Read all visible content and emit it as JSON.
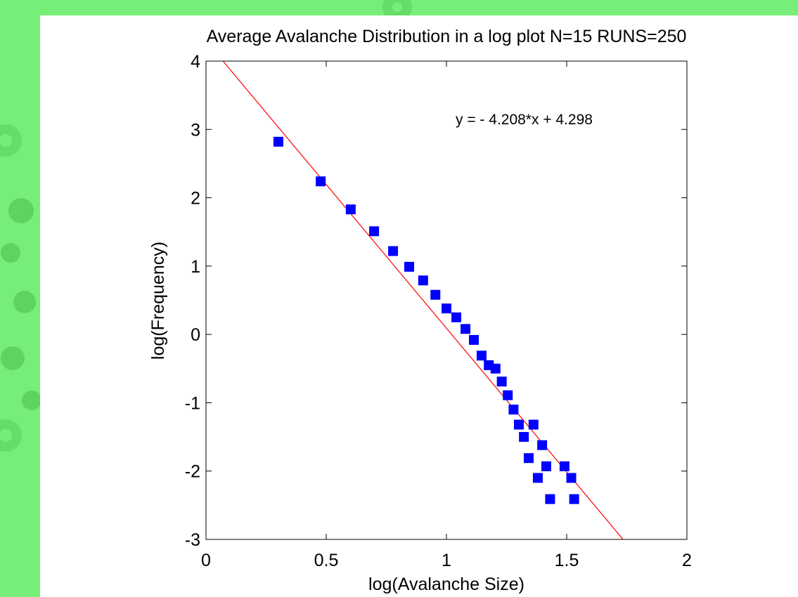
{
  "chart_data": {
    "type": "scatter",
    "title": "Average Avalanche Distribution in a log plot N=15 RUNS=250",
    "x_label": "log(Avalanche Size)",
    "y_label": "log(Frequency)",
    "xlim": [
      0,
      2
    ],
    "ylim": [
      -3,
      4
    ],
    "xticks": [
      0,
      0.5,
      1,
      1.5,
      2
    ],
    "yticks": [
      -3,
      -2,
      -1,
      0,
      1,
      2,
      3,
      4
    ],
    "grid": false,
    "series": [
      {
        "name": null,
        "color": "#0000ff",
        "x": [
          0.301,
          0.477,
          0.602,
          0.699,
          0.778,
          0.845,
          0.903,
          0.954,
          1.0,
          1.041,
          1.079,
          1.114,
          1.146,
          1.176,
          1.204,
          1.23,
          1.255,
          1.279,
          1.301,
          1.322,
          1.342,
          1.362,
          1.38,
          1.398,
          1.415,
          1.431,
          1.491,
          1.519,
          1.531
        ],
        "values": [
          2.82,
          2.24,
          1.83,
          1.51,
          1.22,
          0.99,
          0.79,
          0.58,
          0.38,
          0.25,
          0.08,
          -0.08,
          -0.31,
          -0.45,
          -0.5,
          -0.69,
          -0.89,
          -1.1,
          -1.32,
          -1.5,
          -1.81,
          -1.32,
          -2.1,
          -1.62,
          -1.93,
          -2.41,
          -1.93,
          -2.1,
          -2.41
        ]
      }
    ],
    "fit_line": {
      "slope": -4.208,
      "intercept": 4.298,
      "color": "#ff0000",
      "label": "y = - 4.208*x + 4.298"
    }
  }
}
